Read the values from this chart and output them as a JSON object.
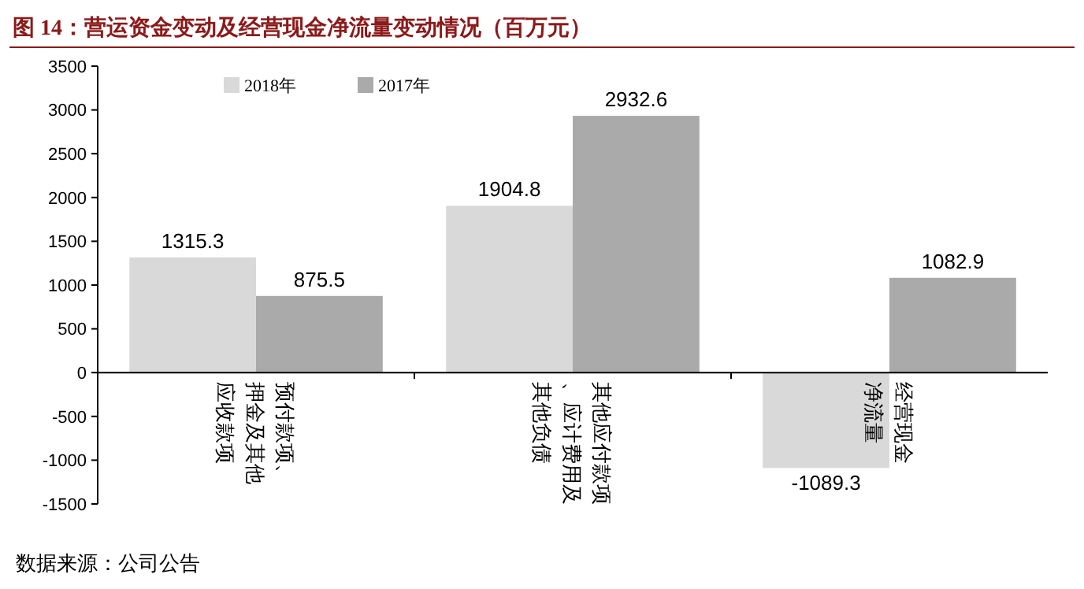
{
  "chart_data": {
    "type": "bar",
    "title": "图 14：营运资金变动及经营现金净流量变动情况（百万元）",
    "categories": [
      "预付款项、押金及其他应收款项",
      "其他应付款项、应计费用及其他负债",
      "经营现金净流量"
    ],
    "series": [
      {
        "name": "2018年",
        "color": "#d9d9d9",
        "values": [
          1315.3,
          1904.8,
          -1089.3
        ]
      },
      {
        "name": "2017年",
        "color": "#aaaaaa",
        "values": [
          875.5,
          2932.6,
          1082.9
        ]
      }
    ],
    "ylim": [
      -1500,
      3500
    ],
    "yticks": [
      -1500,
      -1000,
      -500,
      0,
      500,
      1000,
      1500,
      2000,
      2500,
      3000,
      3500
    ],
    "data_labels": true,
    "grid": false,
    "legend": "top left",
    "annotations": [
      "数据来源：公司公告"
    ]
  }
}
